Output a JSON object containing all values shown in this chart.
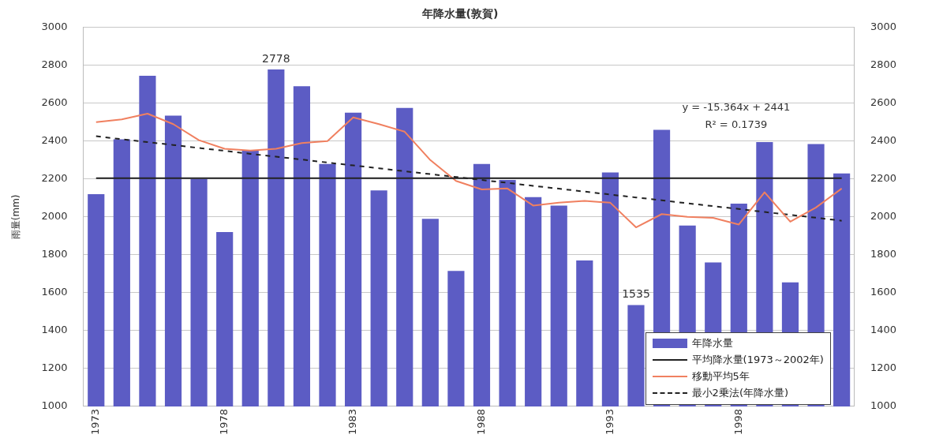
{
  "chart_data": {
    "type": "bar",
    "title": "年降水量(敦賀)",
    "ylabel": "雨量(mm)",
    "categories": [
      "1973",
      null,
      null,
      null,
      null,
      "1978",
      null,
      null,
      null,
      null,
      "1983",
      null,
      null,
      null,
      null,
      "1988",
      null,
      null,
      null,
      null,
      "1993",
      null,
      null,
      null,
      null,
      "1998",
      null,
      null,
      null,
      null
    ],
    "series": [
      {
        "name": "年降水量",
        "color": "#5c5cc4",
        "values": [
          2120,
          2410,
          2745,
          2535,
          2200,
          1920,
          2350,
          2778,
          2690,
          2280,
          2550,
          2140,
          2575,
          1990,
          1715,
          2280,
          2195,
          2105,
          2060,
          1770,
          2235,
          1535,
          2460,
          1955,
          1760,
          2070,
          2395,
          1655,
          2385,
          2230
        ],
        "value_labels": [
          null,
          null,
          null,
          null,
          null,
          null,
          null,
          "2778",
          null,
          null,
          null,
          null,
          null,
          null,
          null,
          null,
          null,
          null,
          null,
          null,
          null,
          "1535",
          null,
          null,
          null,
          null,
          null,
          null,
          null,
          null
        ]
      },
      {
        "name": "平均降水量(1973～2002年)",
        "type": "line",
        "color": "#222222",
        "line_style": "solid",
        "values": [
          2205,
          2205,
          2205,
          2205,
          2205,
          2205,
          2205,
          2205,
          2205,
          2205,
          2205,
          2205,
          2205,
          2205,
          2205,
          2205,
          2205,
          2205,
          2205,
          2205,
          2205,
          2205,
          2205,
          2205,
          2205,
          2205,
          2205,
          2205,
          2205,
          2205
        ]
      },
      {
        "name": "移動平均5年",
        "type": "line",
        "color": "#f08060",
        "line_style": "solid",
        "values": [
          2500,
          2515,
          2545,
          2490,
          2405,
          2360,
          2350,
          2360,
          2390,
          2400,
          2525,
          2490,
          2450,
          2300,
          2190,
          2145,
          2150,
          2060,
          2075,
          2085,
          2075,
          1945,
          2015,
          2000,
          1995,
          1960,
          2130,
          1975,
          2050,
          2150
        ]
      },
      {
        "name": "最小2乗法(年降水量)",
        "type": "line",
        "color": "#222222",
        "line_style": "dashed",
        "values": [
          2426,
          2410,
          2395,
          2380,
          2364,
          2349,
          2333,
          2318,
          2303,
          2287,
          2272,
          2257,
          2241,
          2226,
          2211,
          2195,
          2180,
          2164,
          2149,
          2134,
          2118,
          2103,
          2088,
          2072,
          2057,
          2042,
          2026,
          2011,
          1996,
          1980
        ]
      }
    ],
    "ylim": [
      1000,
      3000
    ],
    "yticks": [
      1000,
      1200,
      1400,
      1600,
      1800,
      2000,
      2200,
      2400,
      2600,
      2800,
      3000
    ],
    "y2lim": [
      1000,
      3000
    ],
    "y2ticks": [
      1000,
      1200,
      1400,
      1600,
      1800,
      2000,
      2200,
      2400,
      2600,
      2800,
      3000
    ],
    "grid": "y",
    "legend": "bottom right",
    "marker": "none",
    "annotations": [
      "y = -15.364x + 2441",
      "R² = 0.1739"
    ]
  }
}
